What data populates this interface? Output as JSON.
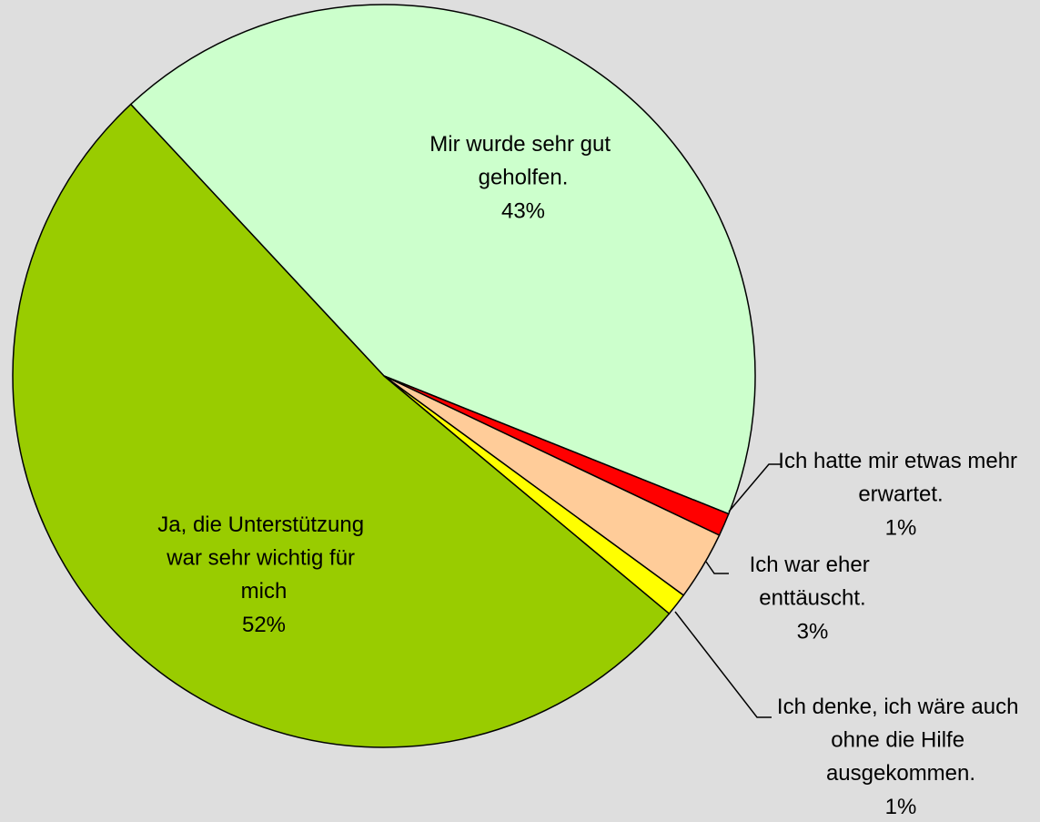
{
  "chart_data": {
    "type": "pie",
    "categories": [
      "Mir wurde sehr gut geholfen.",
      "Ich hatte mir etwas mehr erwartet.",
      "Ich war eher enttäuscht.",
      "Ich denke, ich wäre auch ohne die Hilfe ausgekommen.",
      "Ja, die Unterstützung war sehr wichtig für mich"
    ],
    "values": [
      43,
      1,
      3,
      1,
      52
    ],
    "value_labels": [
      "43%",
      "1%",
      "3%",
      "1%",
      "52%"
    ],
    "colors": [
      "#ccffcc",
      "#ff0000",
      "#ffcc99",
      "#ffff00",
      "#99cc00"
    ]
  }
}
